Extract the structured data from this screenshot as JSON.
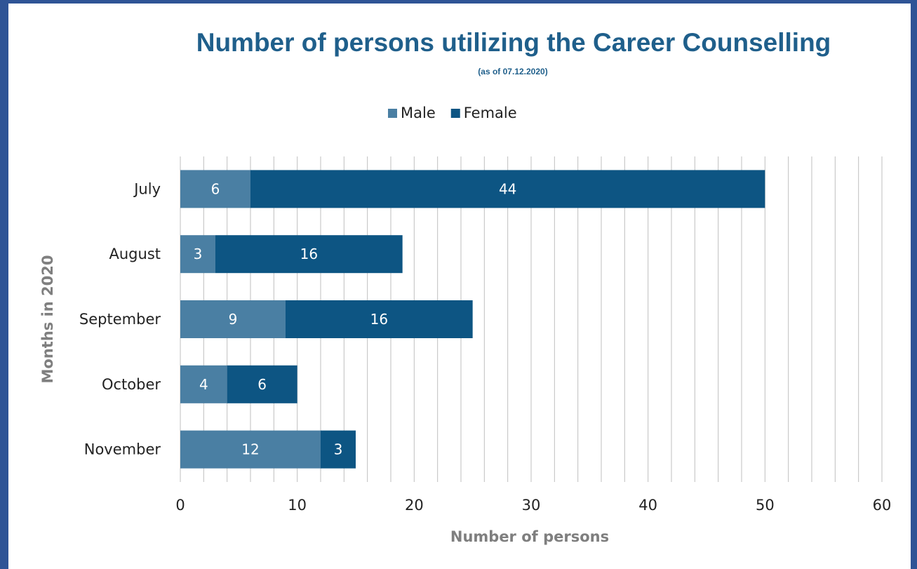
{
  "chart_data": {
    "type": "bar",
    "orientation": "horizontal",
    "stacked": true,
    "title": "Number of persons utilizing the Career Counselling",
    "subtitle": "(as of 07.12.2020)",
    "xlabel": "Number of persons",
    "ylabel": "Months in 2020",
    "xlim": [
      0,
      60
    ],
    "x_ticks": [
      0,
      10,
      20,
      30,
      40,
      50,
      60
    ],
    "grid": "vertical",
    "legend_position": "top",
    "categories": [
      "July",
      "August",
      "September",
      "October",
      "November"
    ],
    "series": [
      {
        "name": "Male",
        "color": "#4a7fa3",
        "values": [
          6,
          3,
          9,
          4,
          12
        ]
      },
      {
        "name": "Female",
        "color": "#0d5583",
        "values": [
          44,
          16,
          16,
          6,
          3
        ]
      }
    ]
  },
  "colors": {
    "frame": "#2f5496",
    "title": "#1f5f8b",
    "gridline": "#bfbfbf",
    "axis_label": "#7f7f7f"
  }
}
